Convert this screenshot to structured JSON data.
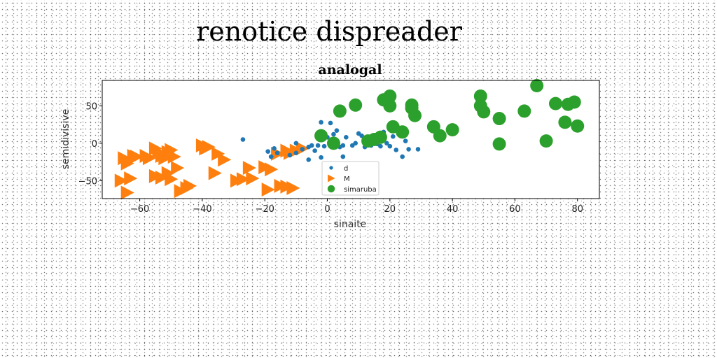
{
  "figure_title": "renotice dispreader",
  "chart_data": {
    "type": "scatter",
    "title": "analogal",
    "xlabel": "sinaite",
    "ylabel": "semidivisive",
    "xlim": [
      -72,
      87
    ],
    "ylim": [
      -74,
      84
    ],
    "xticks": [
      -60,
      -40,
      -20,
      0,
      20,
      40,
      60,
      80
    ],
    "yticks": [
      -50,
      0,
      50
    ],
    "grid": false,
    "legend_position": "lower-center",
    "series": [
      {
        "name": "d",
        "marker": "circle-small",
        "color": "#1f77b4",
        "points": [
          [
            -27,
            5
          ],
          [
            -19,
            -11
          ],
          [
            -18,
            -18
          ],
          [
            -17,
            -7
          ],
          [
            -16,
            -13
          ],
          [
            -12,
            -16
          ],
          [
            -10,
            -13
          ],
          [
            -8,
            -8
          ],
          [
            -6,
            -5
          ],
          [
            -5,
            -3
          ],
          [
            -4,
            -10
          ],
          [
            -3,
            -3
          ],
          [
            -2,
            28
          ],
          [
            -2,
            -19
          ],
          [
            -1,
            -4
          ],
          [
            0,
            8
          ],
          [
            1,
            27
          ],
          [
            1,
            -4
          ],
          [
            2,
            12
          ],
          [
            3,
            17
          ],
          [
            5,
            -3
          ],
          [
            5,
            -18
          ],
          [
            6,
            8
          ],
          [
            8,
            -3
          ],
          [
            9,
            0
          ],
          [
            10,
            13
          ],
          [
            11,
            10
          ],
          [
            12,
            0
          ],
          [
            12,
            -5
          ],
          [
            13,
            6
          ],
          [
            14,
            -3
          ],
          [
            15,
            3
          ],
          [
            16,
            -1
          ],
          [
            17,
            -4
          ],
          [
            18,
            15
          ],
          [
            19,
            0
          ],
          [
            20,
            -4
          ],
          [
            21,
            9
          ],
          [
            22,
            -9
          ],
          [
            24,
            -18
          ],
          [
            25,
            3
          ],
          [
            26,
            -8
          ],
          [
            29,
            -8
          ],
          [
            -6,
            -22
          ],
          [
            -10,
            0
          ],
          [
            4,
            -5
          ]
        ]
      },
      {
        "name": "M",
        "marker": "triangle-right",
        "color": "#ff7f0e",
        "points": [
          [
            -65,
            -20
          ],
          [
            -64,
            -27
          ],
          [
            -62,
            -17
          ],
          [
            -61,
            -18
          ],
          [
            -66,
            -50
          ],
          [
            -64,
            -66
          ],
          [
            -63,
            -47
          ],
          [
            -58,
            -17
          ],
          [
            -57,
            -20
          ],
          [
            -55,
            -7
          ],
          [
            -54,
            -12
          ],
          [
            -53,
            -17
          ],
          [
            -52,
            -20
          ],
          [
            -51,
            -12
          ],
          [
            -50,
            -9
          ],
          [
            -49,
            -18
          ],
          [
            -55,
            -44
          ],
          [
            -53,
            -46
          ],
          [
            -51,
            -40
          ],
          [
            -50,
            -48
          ],
          [
            -48,
            -33
          ],
          [
            -47,
            -64
          ],
          [
            -45,
            -60
          ],
          [
            -44,
            -57
          ],
          [
            -40,
            -3
          ],
          [
            -39,
            -7
          ],
          [
            -38,
            -5
          ],
          [
            -36,
            -40
          ],
          [
            -35,
            -14
          ],
          [
            -33,
            -22
          ],
          [
            -29,
            -50
          ],
          [
            -27,
            -48
          ],
          [
            -25,
            -33
          ],
          [
            -24,
            -47
          ],
          [
            -20,
            -32
          ],
          [
            -19,
            -62
          ],
          [
            -18,
            -35
          ],
          [
            -16,
            -14
          ],
          [
            -15,
            -57
          ],
          [
            -13,
            -10
          ],
          [
            -13,
            -58
          ],
          [
            -12,
            -13
          ],
          [
            -11,
            -60
          ],
          [
            -10,
            -10
          ],
          [
            -8,
            -7
          ]
        ]
      },
      {
        "name": "simaruba",
        "marker": "circle-large",
        "color": "#2ca02c",
        "points": [
          [
            -2,
            10
          ],
          [
            2,
            0
          ],
          [
            4,
            43
          ],
          [
            9,
            51
          ],
          [
            13,
            3
          ],
          [
            15,
            5
          ],
          [
            17,
            8
          ],
          [
            18,
            58
          ],
          [
            20,
            63
          ],
          [
            20,
            50
          ],
          [
            21,
            22
          ],
          [
            24,
            15
          ],
          [
            27,
            51
          ],
          [
            27,
            47
          ],
          [
            28,
            37
          ],
          [
            34,
            22
          ],
          [
            36,
            10
          ],
          [
            40,
            18
          ],
          [
            49,
            63
          ],
          [
            49,
            50
          ],
          [
            50,
            42
          ],
          [
            55,
            33
          ],
          [
            55,
            -1
          ],
          [
            63,
            43
          ],
          [
            67,
            77
          ],
          [
            70,
            3
          ],
          [
            73,
            53
          ],
          [
            76,
            28
          ],
          [
            77,
            52
          ],
          [
            79,
            55
          ],
          [
            80,
            23
          ]
        ]
      }
    ]
  }
}
